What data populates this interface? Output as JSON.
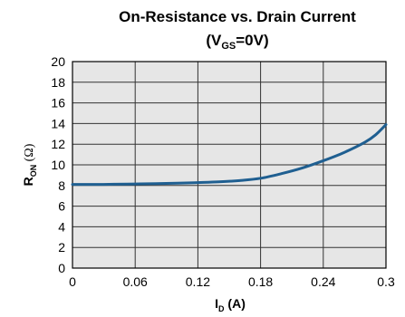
{
  "chart_data": {
    "type": "line",
    "title_line1": "On-Resistance vs. Drain Current",
    "title_line2": {
      "open": "(V",
      "sub": "GS",
      "close": "=0V)"
    },
    "xlabel": {
      "main": "I",
      "sub": "D",
      "unit": " (A)"
    },
    "ylabel": {
      "main": "R",
      "sub": "ON",
      "unit": " (Ω)"
    },
    "xlim": [
      0,
      0.3
    ],
    "ylim": [
      0,
      20
    ],
    "x_ticks": [
      0,
      0.06,
      0.12,
      0.18,
      0.24,
      0.3
    ],
    "x_tick_labels": [
      "0",
      "0.06",
      "0.12",
      "0.18",
      "0.24",
      "0.3"
    ],
    "y_ticks": [
      0,
      2,
      4,
      6,
      8,
      10,
      12,
      14,
      16,
      18,
      20
    ],
    "y_tick_labels": [
      "0",
      "2",
      "4",
      "6",
      "8",
      "10",
      "12",
      "14",
      "16",
      "18",
      "20"
    ],
    "grid": true,
    "series": [
      {
        "color": "#1f5f91",
        "x": [
          0,
          0.02,
          0.04,
          0.06,
          0.08,
          0.1,
          0.12,
          0.14,
          0.16,
          0.18,
          0.2,
          0.22,
          0.24,
          0.26,
          0.28,
          0.29,
          0.3
        ],
        "y": [
          8.1,
          8.1,
          8.12,
          8.15,
          8.18,
          8.22,
          8.28,
          8.35,
          8.48,
          8.7,
          9.15,
          9.7,
          10.4,
          11.2,
          12.2,
          12.9,
          13.9
        ]
      }
    ],
    "plot_background": "#e6e6e6",
    "grid_color": "#333333"
  }
}
